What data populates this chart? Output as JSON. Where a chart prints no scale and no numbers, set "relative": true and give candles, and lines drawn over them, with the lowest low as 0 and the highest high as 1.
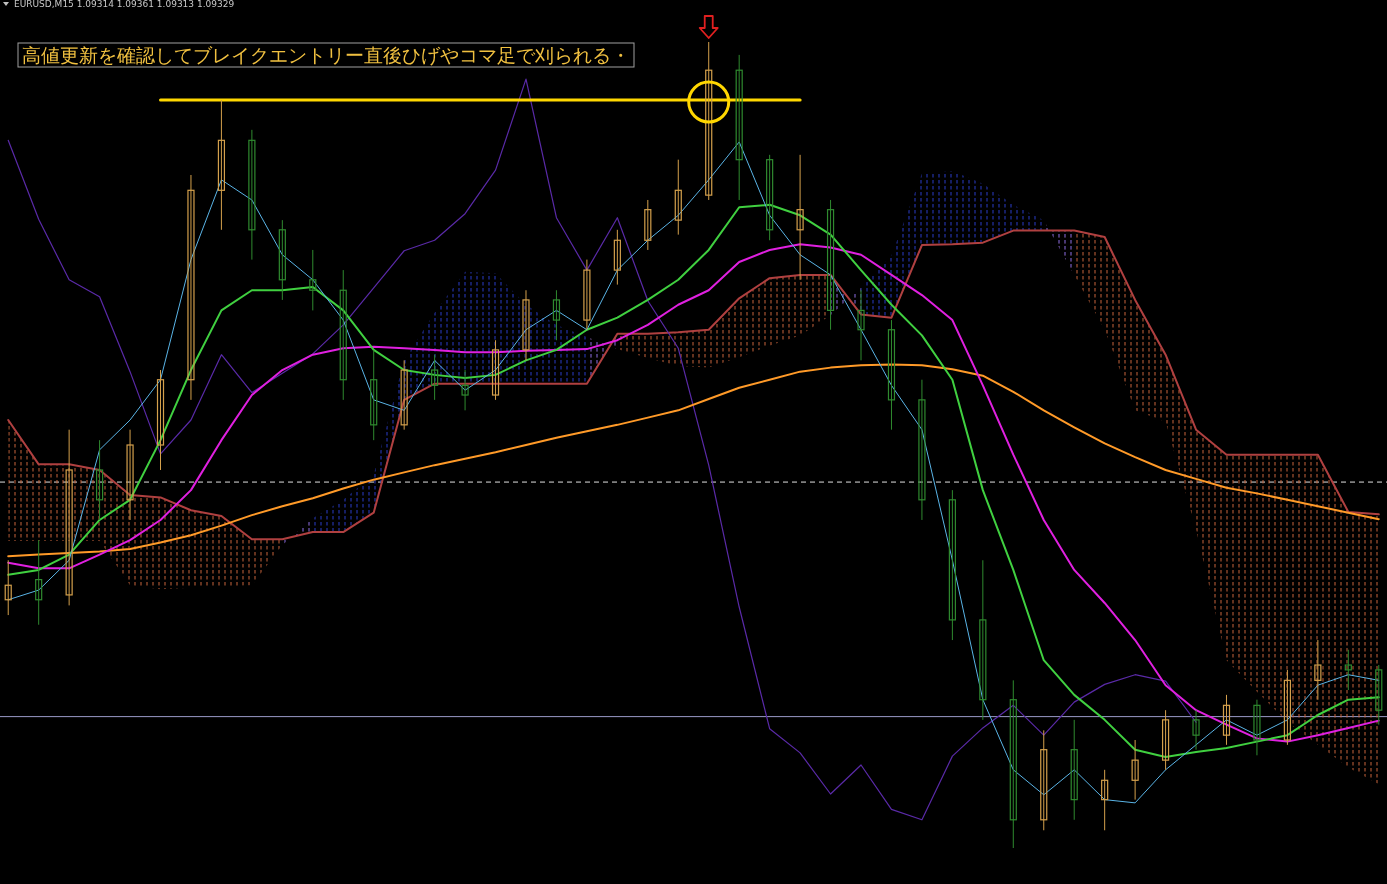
{
  "chart_data": {
    "type": "candlestick",
    "relative": true,
    "title": "EURUSD,M15 1.09314 1.09361 1.09313 1.09329",
    "annotations": [
      "高値更新を確認してブレイクエントリー直後ひげやコマ足で刈られる・"
    ],
    "categories": [
      null,
      null,
      null,
      null,
      null,
      null,
      null,
      null,
      null,
      null,
      null,
      null,
      null,
      null,
      null,
      null,
      null,
      null,
      null,
      null,
      null,
      null,
      null,
      null,
      null,
      null,
      null,
      null,
      null,
      null,
      null,
      null,
      null,
      null,
      null,
      null,
      null,
      null,
      null,
      null,
      null,
      null,
      null,
      null,
      null,
      null
    ],
    "ohlc": [
      [
        0.308,
        0.357,
        0.289,
        0.326
      ],
      [
        0.333,
        0.382,
        0.277,
        0.308
      ],
      [
        0.314,
        0.519,
        0.301,
        0.469
      ],
      [
        0.469,
        0.506,
        0.407,
        0.432
      ],
      [
        0.432,
        0.519,
        0.407,
        0.5
      ],
      [
        0.5,
        0.593,
        0.469,
        0.581
      ],
      [
        0.581,
        0.835,
        0.556,
        0.816
      ],
      [
        0.816,
        0.928,
        0.767,
        0.878
      ],
      [
        0.878,
        0.891,
        0.73,
        0.767
      ],
      [
        0.767,
        0.779,
        0.68,
        0.705
      ],
      [
        0.705,
        0.742,
        0.667,
        0.692
      ],
      [
        0.692,
        0.717,
        0.556,
        0.581
      ],
      [
        0.581,
        0.618,
        0.506,
        0.525
      ],
      [
        0.525,
        0.605,
        0.519,
        0.593
      ],
      [
        0.593,
        0.612,
        0.556,
        0.574
      ],
      [
        0.574,
        0.593,
        0.543,
        0.562
      ],
      [
        0.562,
        0.63,
        0.556,
        0.618
      ],
      [
        0.618,
        0.692,
        0.605,
        0.68
      ],
      [
        0.68,
        0.692,
        0.63,
        0.655
      ],
      [
        0.655,
        0.73,
        0.643,
        0.717
      ],
      [
        0.717,
        0.767,
        0.699,
        0.754
      ],
      [
        0.754,
        0.804,
        0.742,
        0.792
      ],
      [
        0.779,
        0.854,
        0.761,
        0.816
      ],
      [
        0.81,
        1.0,
        0.804,
        0.965
      ],
      [
        0.965,
        0.984,
        0.804,
        0.854
      ],
      [
        0.854,
        0.86,
        0.754,
        0.767
      ],
      [
        0.767,
        0.86,
        0.705,
        0.792
      ],
      [
        0.792,
        0.804,
        0.643,
        0.667
      ],
      [
        0.667,
        0.692,
        0.605,
        0.643
      ],
      [
        0.643,
        0.655,
        0.519,
        0.556
      ],
      [
        0.556,
        0.581,
        0.407,
        0.432
      ],
      [
        0.432,
        0.444,
        0.258,
        0.283
      ],
      [
        0.283,
        0.357,
        0.159,
        0.184
      ],
      [
        0.184,
        0.208,
        0.0,
        0.035
      ],
      [
        0.035,
        0.146,
        0.022,
        0.122
      ],
      [
        0.122,
        0.159,
        0.035,
        0.06
      ],
      [
        0.06,
        0.097,
        0.022,
        0.084
      ],
      [
        0.084,
        0.134,
        0.06,
        0.109
      ],
      [
        0.109,
        0.171,
        0.097,
        0.159
      ],
      [
        0.159,
        0.171,
        0.122,
        0.14
      ],
      [
        0.14,
        0.19,
        0.128,
        0.177
      ],
      [
        0.177,
        0.184,
        0.115,
        0.134
      ],
      [
        0.134,
        0.221,
        0.128,
        0.208
      ],
      [
        0.208,
        0.258,
        0.184,
        0.227
      ],
      [
        0.227,
        0.246,
        0.196,
        0.221
      ],
      [
        0.221,
        0.227,
        0.153,
        0.171
      ]
    ],
    "colors": [
      "#d4a04c",
      "#2f8a2f",
      "#d4a04c",
      "#2f8a2f",
      "#d4a04c",
      "#d4a04c",
      "#d4a04c",
      "#d4a04c",
      "#2f8a2f",
      "#2f8a2f",
      "#2f8a2f",
      "#2f8a2f",
      "#2f8a2f",
      "#d4a04c",
      "#2f8a2f",
      "#2f8a2f",
      "#d4a04c",
      "#d4a04c",
      "#2f8a2f",
      "#d4a04c",
      "#d4a04c",
      "#d4a04c",
      "#d4a04c",
      "#d4a04c",
      "#2f8a2f",
      "#2f8a2f",
      "#d4a04c",
      "#2f8a2f",
      "#2f8a2f",
      "#2f8a2f",
      "#2f8a2f",
      "#2f8a2f",
      "#2f8a2f",
      "#2f8a2f",
      "#d4a04c",
      "#2f8a2f",
      "#d4a04c",
      "#d4a04c",
      "#d4a04c",
      "#2f8a2f",
      "#d4a04c",
      "#2f8a2f",
      "#d4a04c",
      "#d4a04c",
      "#2f8a2f",
      "#2f8a2f"
    ],
    "ref_lines": [
      {
        "axis": "y",
        "value": 0.454,
        "color": "#e0e0e0",
        "line_style": "dashed"
      },
      {
        "axis": "y",
        "value": 0.163,
        "color": "#9a9ac8",
        "line_style": "solid"
      }
    ],
    "series": [
      {
        "type": "line",
        "color": "#c8643c",
        "values": [
          null,
          null,
          null,
          null,
          null,
          null,
          null,
          null,
          null,
          null,
          null,
          null,
          null,
          null,
          null,
          null,
          null,
          null,
          null,
          null,
          null,
          null,
          null,
          null,
          null,
          null,
          null,
          null,
          null,
          null,
          null,
          null,
          null,
          null,
          null,
          null,
          null,
          null,
          null,
          null,
          null,
          null,
          null,
          null,
          null,
          null
        ],
        "upper": [
          0.531,
          0.476,
          0.476,
          0.469,
          0.438,
          0.435,
          0.419,
          0.412,
          0.383,
          0.383,
          0.392,
          null,
          null,
          null,
          null,
          null,
          null,
          null,
          null,
          0.576,
          0.638,
          0.638,
          0.64,
          0.643,
          0.682,
          0.707,
          0.711,
          0.711,
          0.662,
          null,
          null,
          null,
          null,
          null,
          0.766,
          0.766,
          0.758,
          0.68,
          0.612,
          0.519,
          0.488,
          0.488,
          0.488,
          0.488,
          0.417,
          0.414
        ],
        "lower": [
          0.381,
          0.381,
          0.381,
          0.381,
          0.326,
          0.321,
          0.323,
          0.324,
          0.326,
          0.376,
          0.409,
          null,
          null,
          null,
          null,
          null,
          null,
          null,
          null,
          0.634,
          0.619,
          0.608,
          0.598,
          0.596,
          0.609,
          0.623,
          0.636,
          0.661,
          0.695,
          null,
          null,
          null,
          null,
          null,
          0.779,
          0.711,
          0.643,
          0.543,
          0.529,
          0.395,
          0.233,
          0.194,
          0.156,
          0.128,
          0.1,
          0.079
        ]
      },
      {
        "type": "line",
        "color": "#2a3cc8",
        "values": [
          null,
          null,
          null,
          null,
          null,
          null,
          null,
          null,
          null,
          null,
          null,
          null,
          null,
          null,
          null,
          null,
          null,
          null,
          null,
          null,
          null,
          null,
          null,
          null,
          null,
          null,
          null,
          null,
          null,
          null,
          null,
          null,
          null,
          null,
          null,
          null,
          null,
          null,
          null,
          null,
          null,
          null,
          null,
          null,
          null,
          null
        ],
        "lower": [
          null,
          null,
          null,
          null,
          null,
          null,
          null,
          null,
          null,
          0.383,
          0.392,
          0.392,
          0.416,
          0.556,
          0.576,
          0.576,
          0.576,
          0.576,
          0.576,
          0.576,
          0.638,
          null,
          null,
          null,
          null,
          null,
          null,
          0.711,
          0.662,
          0.658,
          0.748,
          0.749,
          0.751,
          0.766,
          0.766,
          0.766,
          null,
          null,
          null,
          null,
          null,
          null,
          null,
          null,
          null,
          null
        ],
        "upper": [
          null,
          null,
          null,
          null,
          null,
          null,
          null,
          null,
          null,
          0.376,
          0.409,
          0.432,
          0.463,
          0.605,
          0.664,
          0.715,
          0.713,
          0.674,
          0.649,
          0.634,
          0.619,
          null,
          null,
          null,
          null,
          null,
          null,
          0.661,
          0.695,
          0.735,
          0.837,
          0.84,
          0.824,
          0.798,
          0.779,
          0.711,
          null,
          null,
          null,
          null,
          null,
          null,
          null,
          null,
          null,
          null
        ]
      },
      {
        "type": "line",
        "color": "#b04040",
        "values": [
          0.531,
          0.476,
          0.476,
          0.469,
          0.438,
          0.435,
          0.419,
          0.412,
          0.383,
          0.383,
          0.392,
          0.392,
          0.416,
          0.556,
          0.576,
          0.576,
          0.576,
          0.576,
          0.576,
          0.576,
          0.638,
          0.638,
          0.64,
          0.643,
          0.682,
          0.707,
          0.711,
          0.711,
          0.662,
          0.658,
          0.748,
          0.749,
          0.751,
          0.766,
          0.766,
          0.766,
          0.758,
          0.68,
          0.612,
          0.519,
          0.488,
          0.488,
          0.488,
          0.488,
          0.417,
          0.414
        ]
      },
      {
        "type": "line",
        "color": "#5a2aa8",
        "values": [
          0.878,
          0.78,
          0.705,
          0.684,
          0.591,
          0.489,
          0.531,
          0.612,
          0.565,
          0.589,
          0.613,
          0.649,
          0.695,
          0.741,
          0.754,
          0.787,
          0.841,
          0.954,
          0.782,
          0.717,
          0.782,
          0.679,
          0.62,
          0.475,
          0.299,
          0.148,
          0.118,
          0.067,
          0.103,
          0.048,
          0.035,
          0.114,
          0.149,
          0.177,
          0.14,
          0.181,
          0.203,
          0.215,
          0.207,
          0.156,
          null,
          null,
          null,
          null,
          null,
          null
        ]
      },
      {
        "type": "line",
        "color": "#ff9a28",
        "values": [
          0.362,
          0.364,
          0.366,
          0.368,
          0.371,
          0.379,
          0.388,
          0.4,
          0.413,
          0.424,
          0.434,
          0.446,
          0.457,
          0.466,
          0.475,
          0.483,
          0.491,
          0.5,
          0.509,
          0.517,
          0.525,
          0.534,
          0.543,
          0.557,
          0.571,
          0.581,
          0.591,
          0.596,
          0.599,
          0.6,
          0.599,
          0.594,
          0.586,
          0.566,
          0.543,
          0.522,
          0.502,
          0.485,
          0.469,
          0.458,
          0.447,
          0.44,
          0.432,
          0.424,
          0.416,
          0.408
        ]
      },
      {
        "type": "line",
        "color": "#e020e0",
        "values": [
          0.354,
          0.347,
          0.347,
          0.364,
          0.382,
          0.407,
          0.444,
          0.506,
          0.562,
          0.593,
          0.612,
          0.62,
          0.622,
          0.62,
          0.618,
          0.615,
          0.615,
          0.617,
          0.618,
          0.619,
          0.63,
          0.649,
          0.674,
          0.692,
          0.727,
          0.742,
          0.749,
          0.745,
          0.736,
          0.711,
          0.686,
          0.655,
          0.574,
          0.488,
          0.407,
          0.345,
          0.304,
          0.258,
          0.202,
          0.171,
          0.153,
          0.136,
          0.132,
          0.14,
          0.149,
          0.158
        ]
      },
      {
        "type": "line",
        "color": "#40d040",
        "values": [
          0.339,
          0.345,
          0.364,
          0.407,
          0.432,
          0.506,
          0.593,
          0.667,
          0.692,
          0.692,
          0.696,
          0.667,
          0.618,
          0.593,
          0.587,
          0.583,
          0.587,
          0.605,
          0.618,
          0.643,
          0.658,
          0.68,
          0.705,
          0.742,
          0.795,
          0.798,
          0.785,
          0.761,
          0.717,
          0.674,
          0.636,
          0.581,
          0.444,
          0.345,
          0.233,
          0.19,
          0.159,
          0.122,
          0.113,
          0.119,
          0.124,
          0.132,
          0.14,
          0.165,
          0.184,
          0.187
        ]
      },
      {
        "type": "line",
        "color": "#5ab4e6",
        "values": [
          0.308,
          0.32,
          0.357,
          0.494,
          0.531,
          0.581,
          0.73,
          0.829,
          0.804,
          0.736,
          0.705,
          0.655,
          0.556,
          0.543,
          0.605,
          0.568,
          0.593,
          0.643,
          0.667,
          0.643,
          0.717,
          0.754,
          0.785,
          0.829,
          0.876,
          0.785,
          0.736,
          0.711,
          0.643,
          0.574,
          0.519,
          0.357,
          0.184,
          0.097,
          0.066,
          0.097,
          0.06,
          0.056,
          0.097,
          0.128,
          0.159,
          0.14,
          0.159,
          0.202,
          0.215,
          0.208
        ]
      },
      {
        "type": "line",
        "color": "#ffd700",
        "values": [
          null,
          null,
          null,
          null,
          null,
          0.928,
          0.928,
          0.928,
          0.928,
          0.928,
          0.928,
          0.928,
          0.928,
          0.928,
          0.928,
          0.928,
          0.928,
          0.928,
          0.928,
          0.928,
          0.928,
          0.928,
          0.928,
          0.928,
          0.928,
          0.928,
          0.928,
          null,
          null,
          null,
          null,
          null,
          null,
          null,
          null,
          null,
          null,
          null,
          null,
          null,
          null,
          null,
          null,
          null,
          null,
          null
        ]
      }
    ]
  }
}
